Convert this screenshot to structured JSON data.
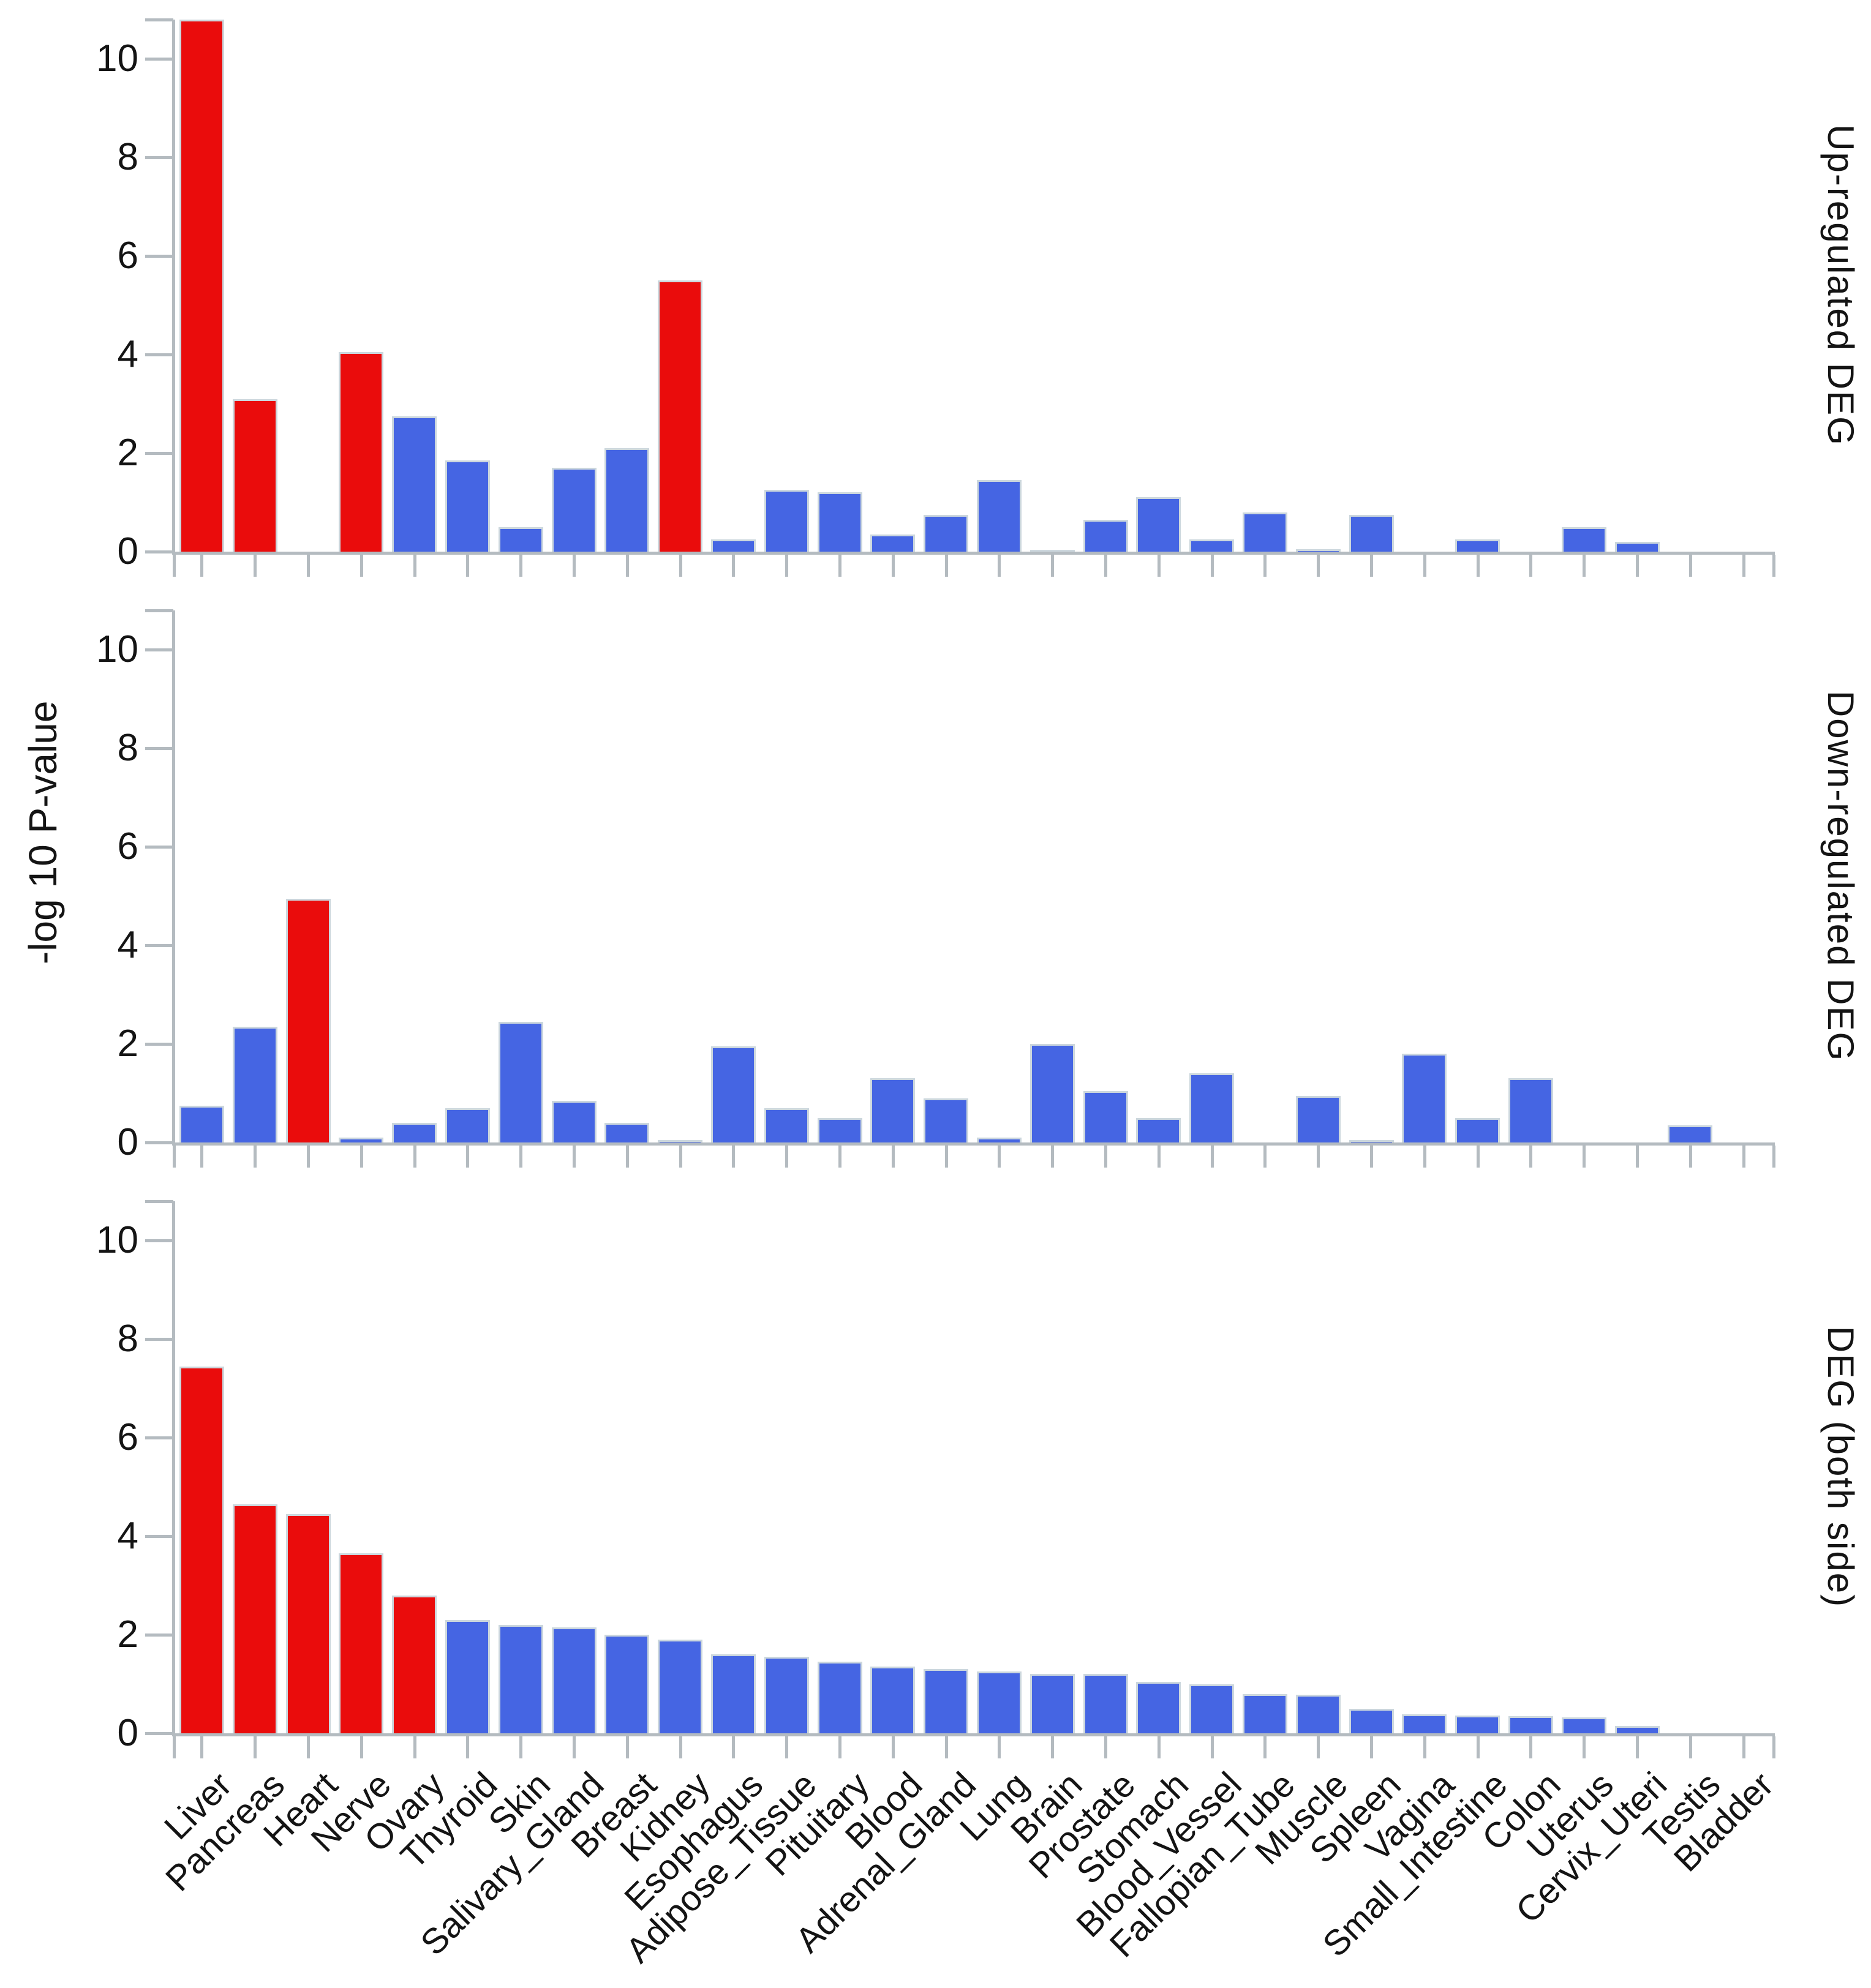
{
  "chart_data": {
    "type": "bar",
    "ylabel": "-log 10 P-value",
    "ylim": [
      0,
      10.8
    ],
    "y_ticks": [
      0,
      2,
      4,
      6,
      8,
      10
    ],
    "grid": false,
    "legend": "none",
    "bar_colors": {
      "highlight": "#ea0c0c",
      "normal": "#4565e3"
    },
    "categories": [
      "Liver",
      "Pancreas",
      "Heart",
      "Nerve",
      "Ovary",
      "Thyroid",
      "Skin",
      "Salivary_Gland",
      "Breast",
      "Kidney",
      "Esophagus",
      "Adipose_Tissue",
      "Pituitary",
      "Blood",
      "Adrenal_Gland",
      "Lung",
      "Brain",
      "Prostate",
      "Stomach",
      "Blood_Vessel",
      "Fallopian_Tube",
      "Muscle",
      "Spleen",
      "Vagina",
      "Small_Intestine",
      "Colon",
      "Uterus",
      "Cervix_Uteri",
      "Testis",
      "Bladder"
    ],
    "panels": [
      {
        "title": "Up-regulated DEG",
        "values": [
          10.8,
          3.1,
          0,
          4.05,
          2.75,
          1.85,
          0.5,
          1.7,
          2.1,
          5.5,
          0.25,
          1.25,
          1.2,
          0.35,
          0.75,
          1.45,
          0.04,
          0.65,
          1.1,
          0.25,
          0.8,
          0.05,
          0.75,
          0,
          0.25,
          0,
          0.5,
          0.2,
          0,
          0
        ],
        "clipped_categories": [
          "Liver"
        ],
        "red_categories": [
          "Liver",
          "Pancreas",
          "Nerve",
          "Kidney"
        ]
      },
      {
        "title": "Down-regulated DEG",
        "values": [
          0.75,
          2.35,
          4.95,
          0.1,
          0.4,
          0.7,
          2.45,
          0.85,
          0.4,
          0.05,
          1.95,
          0.7,
          0.5,
          1.3,
          0.9,
          0.1,
          2.0,
          1.05,
          0.5,
          1.4,
          0,
          0.95,
          0.05,
          1.8,
          0.5,
          1.3,
          0,
          0,
          0.35,
          0
        ],
        "clipped_categories": [],
        "red_categories": [
          "Heart"
        ]
      },
      {
        "title": "DEG (both side)",
        "values": [
          7.45,
          4.65,
          4.45,
          3.65,
          2.8,
          2.3,
          2.2,
          2.15,
          2.0,
          1.9,
          1.6,
          1.55,
          1.45,
          1.35,
          1.3,
          1.25,
          1.2,
          1.2,
          1.05,
          1.0,
          0.8,
          0.78,
          0.5,
          0.38,
          0.36,
          0.35,
          0.32,
          0.15,
          0,
          0
        ],
        "clipped_categories": [],
        "red_categories": [
          "Liver",
          "Pancreas",
          "Heart",
          "Nerve",
          "Ovary"
        ]
      }
    ]
  }
}
